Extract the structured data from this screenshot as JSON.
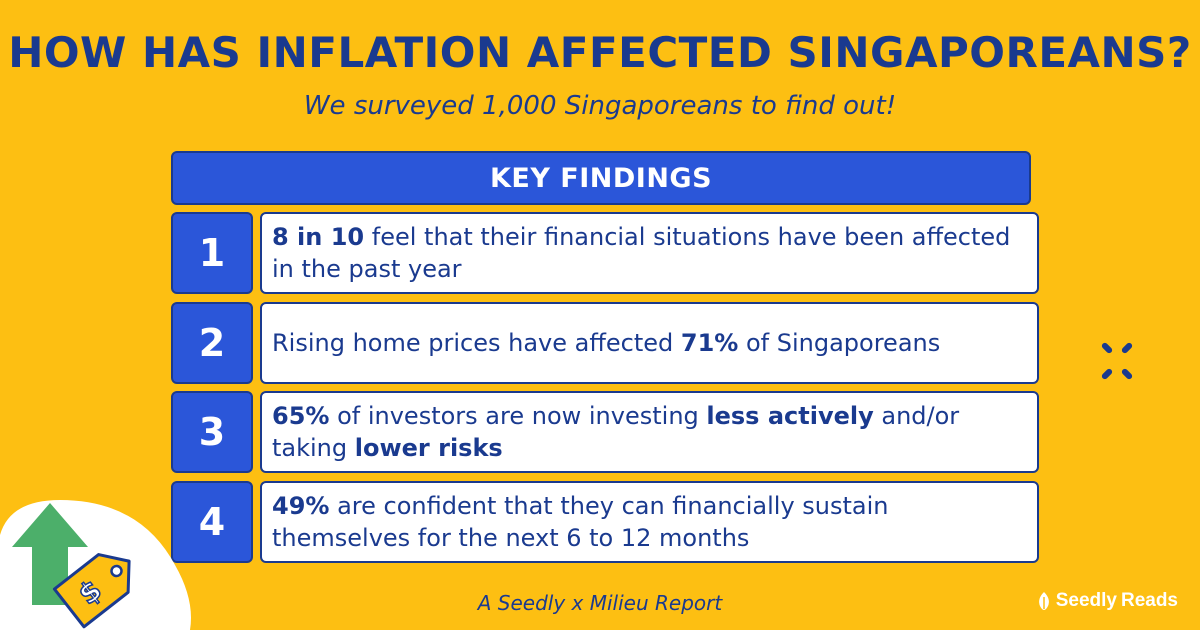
{
  "header": {
    "title": "HOW HAS INFLATION AFFECTED SINGAPOREANS?",
    "subtitle": "We surveyed 1,000 Singaporeans to find out!"
  },
  "key_findings": {
    "heading": "KEY FINDINGS",
    "items": [
      {
        "number": "1",
        "segments": [
          {
            "text": "8 in 10",
            "bold": true
          },
          {
            "text": " feel that their financial situations have been affected in the past year",
            "bold": false
          }
        ]
      },
      {
        "number": "2",
        "segments": [
          {
            "text": "Rising home prices have affected ",
            "bold": false
          },
          {
            "text": "71%",
            "bold": true
          },
          {
            "text": " of Singaporeans",
            "bold": false
          }
        ]
      },
      {
        "number": "3",
        "segments": [
          {
            "text": "65%",
            "bold": true
          },
          {
            "text": " of investors are now investing ",
            "bold": false
          },
          {
            "text": "less actively",
            "bold": true
          },
          {
            "text": " and/or taking ",
            "bold": false
          },
          {
            "text": "lower risks",
            "bold": true
          }
        ]
      },
      {
        "number": "4",
        "segments": [
          {
            "text": "49%",
            "bold": true
          },
          {
            "text": " are confident that they can financially sustain themselves for the next 6 to 12 months",
            "bold": false
          }
        ]
      }
    ]
  },
  "footer": {
    "report_credit": "A Seedly x Milieu Report",
    "brand_name_1": "Seedly",
    "brand_name_2": "Reads"
  },
  "decorations": {
    "sparkle_icon": "sparkle-icon",
    "arrow_icon": "up-arrow-icon",
    "price_tag_icon": "dollar-price-tag-icon",
    "brand_icon": "seedly-leaf-icon"
  },
  "colors": {
    "background": "#FDBF12",
    "primary_blue": "#2B56D9",
    "navy": "#1a3a8f",
    "arrow_green": "#4CAF6A"
  }
}
